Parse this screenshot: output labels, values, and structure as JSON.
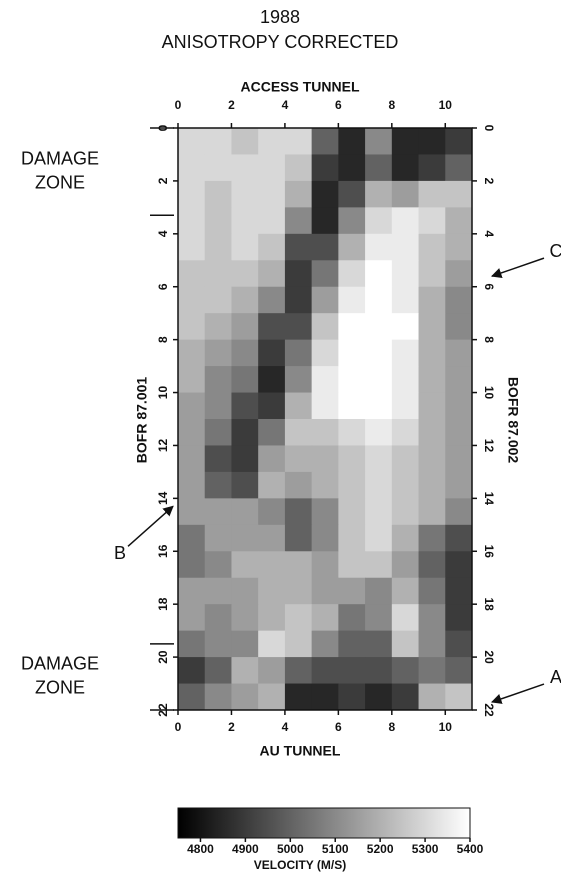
{
  "chart_data": {
    "type": "heatmap",
    "title": [
      "1988",
      "ANISOTROPY CORRECTED"
    ],
    "x_label_top": "ACCESS TUNNEL",
    "x_label_bottom": "AU TUNNEL",
    "y_label_left": "BOFR 87.001",
    "y_label_right": "BOFR 87.002",
    "xlim": [
      0,
      11
    ],
    "ylim": [
      0,
      22
    ],
    "xticks": [
      0,
      2,
      4,
      6,
      8,
      10
    ],
    "yticks": [
      0,
      2,
      4,
      6,
      8,
      10,
      12,
      14,
      16,
      18,
      20,
      22
    ],
    "z": [
      [
        5300,
        5300,
        5250,
        5300,
        5300,
        5000,
        4850,
        5100,
        4850,
        4850,
        4900
      ],
      [
        5300,
        5300,
        5300,
        5300,
        5250,
        4900,
        4850,
        5000,
        4850,
        4900,
        5000
      ],
      [
        5300,
        5250,
        5300,
        5300,
        5200,
        4850,
        4950,
        5200,
        5150,
        5250,
        5250
      ],
      [
        5300,
        5250,
        5300,
        5300,
        5100,
        4850,
        5100,
        5300,
        5350,
        5300,
        5200
      ],
      [
        5300,
        5250,
        5300,
        5250,
        4950,
        4950,
        5200,
        5350,
        5350,
        5250,
        5200
      ],
      [
        5250,
        5250,
        5250,
        5200,
        4900,
        5050,
        5300,
        5400,
        5350,
        5250,
        5150
      ],
      [
        5250,
        5250,
        5200,
        5100,
        4900,
        5150,
        5350,
        5400,
        5350,
        5200,
        5100
      ],
      [
        5250,
        5200,
        5150,
        4950,
        4950,
        5250,
        5400,
        5400,
        5400,
        5200,
        5100
      ],
      [
        5200,
        5150,
        5100,
        4900,
        5050,
        5300,
        5400,
        5400,
        5350,
        5200,
        5150
      ],
      [
        5200,
        5100,
        5050,
        4850,
        5100,
        5350,
        5400,
        5400,
        5350,
        5200,
        5150
      ],
      [
        5150,
        5100,
        4950,
        4900,
        5200,
        5350,
        5400,
        5400,
        5350,
        5200,
        5150
      ],
      [
        5150,
        5050,
        4900,
        5050,
        5250,
        5250,
        5300,
        5350,
        5300,
        5200,
        5150
      ],
      [
        5150,
        4950,
        4900,
        5150,
        5200,
        5200,
        5250,
        5300,
        5250,
        5200,
        5150
      ],
      [
        5150,
        5000,
        4950,
        5200,
        5150,
        5200,
        5250,
        5300,
        5250,
        5200,
        5150
      ],
      [
        5150,
        5150,
        5150,
        5100,
        5000,
        5100,
        5250,
        5300,
        5250,
        5200,
        5100
      ],
      [
        5050,
        5150,
        5150,
        5150,
        5000,
        5100,
        5250,
        5300,
        5200,
        5050,
        4950
      ],
      [
        5050,
        5100,
        5200,
        5200,
        5200,
        5150,
        5250,
        5250,
        5150,
        5000,
        4900
      ],
      [
        5150,
        5150,
        5150,
        5200,
        5200,
        5150,
        5150,
        5100,
        5200,
        5050,
        4900
      ],
      [
        5150,
        5100,
        5150,
        5200,
        5250,
        5200,
        5050,
        5100,
        5300,
        5100,
        4900
      ],
      [
        5050,
        5100,
        5100,
        5300,
        5250,
        5100,
        5000,
        5000,
        5250,
        5100,
        4950
      ],
      [
        4900,
        5000,
        5200,
        5150,
        5000,
        4950,
        4950,
        4950,
        5000,
        5050,
        5000
      ],
      [
        5000,
        5100,
        5150,
        5200,
        4850,
        4850,
        4900,
        4850,
        4900,
        5200,
        5250
      ]
    ],
    "colorbar": {
      "label": "VELOCITY (M/S)",
      "lim": [
        4750,
        5400
      ],
      "ticks": [
        4800,
        4900,
        5000,
        5100,
        5200,
        5300,
        5400
      ]
    },
    "damage_zones": [
      {
        "label": [
          "DAMAGE",
          "ZONE"
        ],
        "range": [
          0,
          3.3
        ]
      },
      {
        "label": [
          "DAMAGE",
          "ZONE"
        ],
        "range": [
          19.5,
          22
        ]
      }
    ],
    "arrows": [
      {
        "label": "C",
        "side": "right",
        "y": 5.6
      },
      {
        "label": "B",
        "side": "left",
        "y": 14.3
      },
      {
        "label": "A",
        "side": "right",
        "y": 21.7
      }
    ]
  }
}
